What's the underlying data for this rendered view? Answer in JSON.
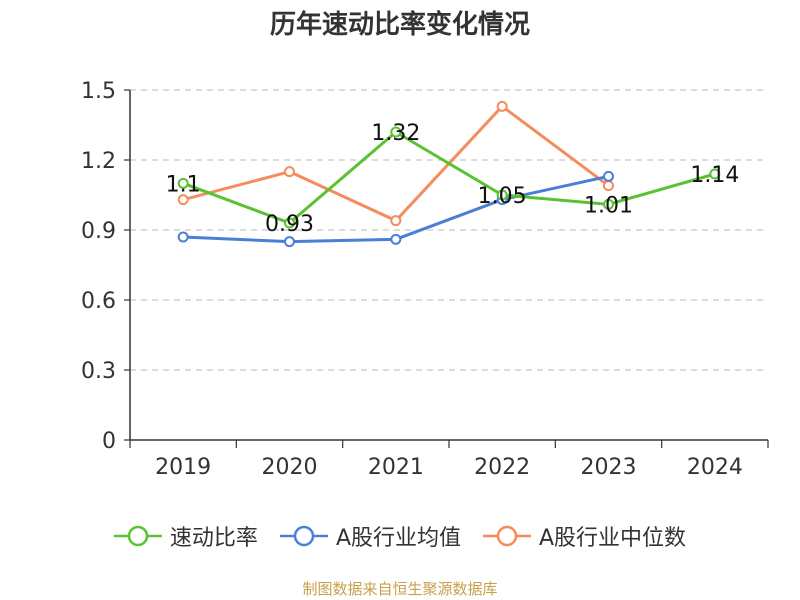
{
  "chart_data": {
    "type": "line",
    "title": "历年速动比率变化情况",
    "categories": [
      "2019",
      "2020",
      "2021",
      "2022",
      "2023",
      "2024"
    ],
    "ylim": [
      0,
      1.5
    ],
    "yticks": [
      "0",
      "0.3",
      "0.6",
      "0.9",
      "1.2",
      "1.5"
    ],
    "grid": true,
    "legend_position": "bottom",
    "series": [
      {
        "name": "速动比率",
        "color": "#5ac232",
        "values": [
          1.1,
          0.93,
          1.32,
          1.05,
          1.01,
          1.14
        ],
        "labels": [
          "1.1",
          "0.93",
          "1.32",
          "1.05",
          "1.01",
          "1.14"
        ]
      },
      {
        "name": "A股行业均值",
        "color": "#4a7fd8",
        "values": [
          0.87,
          0.85,
          0.86,
          1.03,
          1.13,
          null
        ]
      },
      {
        "name": "A股行业中位数",
        "color": "#f48c5c",
        "values": [
          1.03,
          1.15,
          0.94,
          1.43,
          1.09,
          null
        ]
      }
    ]
  },
  "source": "制图数据来自恒生聚源数据库"
}
